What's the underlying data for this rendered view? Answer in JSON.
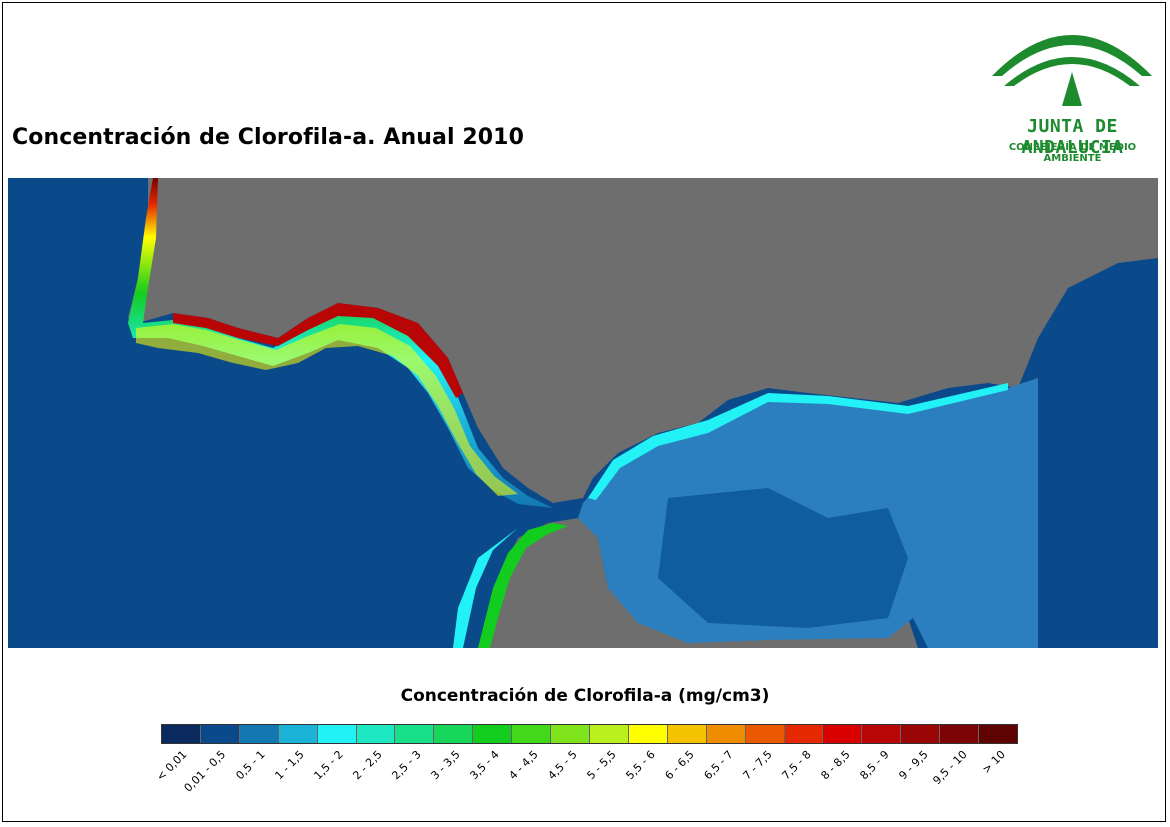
{
  "title": "Concentración de Clorofila-a. Anual 2010",
  "logo": {
    "name": "JUNTA DE ANDALUCIA",
    "subtitle": "CONSEJERÍA DE MEDIO AMBIENTE",
    "color": "#1d8a2e"
  },
  "map": {
    "land_color": "#6e6e6e",
    "ocean_color": "#0b4a8a",
    "med_color": "#2b7fbf"
  },
  "legend": {
    "title": "Concentración de Clorofila-a (mg/cm3)",
    "classes": [
      {
        "label": "< 0,01",
        "color": "#0a2a5e"
      },
      {
        "label": "0,01 - 0,5",
        "color": "#0b4a8a"
      },
      {
        "label": "0,5 - 1",
        "color": "#1378b0"
      },
      {
        "label": "1 - 1,5",
        "color": "#1cb3d8"
      },
      {
        "label": "1,5 - 2",
        "color": "#22f2f5"
      },
      {
        "label": "2 - 2,5",
        "color": "#1ee8c2"
      },
      {
        "label": "2,5 - 3",
        "color": "#1adf8a"
      },
      {
        "label": "3 - 3,5",
        "color": "#17d65a"
      },
      {
        "label": "3,5 - 4",
        "color": "#12cc1e"
      },
      {
        "label": "4 - 4,5",
        "color": "#44d81a"
      },
      {
        "label": "4,5 - 5",
        "color": "#7fe41c"
      },
      {
        "label": "5 - 5,5",
        "color": "#b9f01e"
      },
      {
        "label": "5,5 - 6",
        "color": "#ffff00"
      },
      {
        "label": "6 - 6,5",
        "color": "#f5c200"
      },
      {
        "label": "6,5 - 7",
        "color": "#f08c00"
      },
      {
        "label": "7 - 7,5",
        "color": "#ea5800"
      },
      {
        "label": "7,5 - 8",
        "color": "#e42800"
      },
      {
        "label": "8 - 8,5",
        "color": "#d80000"
      },
      {
        "label": "8,5 - 9",
        "color": "#b80505"
      },
      {
        "label": "9 - 9,5",
        "color": "#9a0505"
      },
      {
        "label": "9,5 - 10",
        "color": "#7c0404"
      },
      {
        "label": "> 10",
        "color": "#5e0202"
      }
    ]
  }
}
